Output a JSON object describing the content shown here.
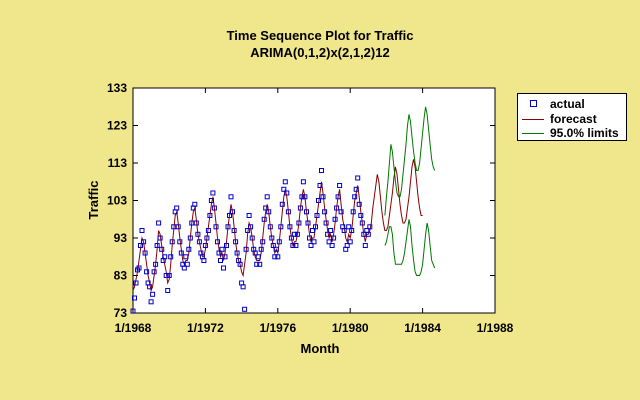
{
  "colors": {
    "background": "#f0e68c",
    "plot_bg": "#ffffff",
    "actual": "#0000cc",
    "forecast": "#8b0000",
    "limits": "#007700"
  },
  "chart_data": {
    "type": "line",
    "title": "Time Sequence Plot for Traffic",
    "subtitle": "ARIMA(0,1,2)x(2,1,2)12",
    "xlabel": "Month",
    "ylabel": "Traffic",
    "xlim": [
      1968.0,
      1988.0
    ],
    "ylim": [
      73,
      133
    ],
    "x_ticks": [
      "1/1968",
      "1/1972",
      "1/1976",
      "1/1980",
      "1/1984",
      "1/1988"
    ],
    "y_ticks": [
      "133",
      "123",
      "113",
      "103",
      "93",
      "83",
      "73"
    ],
    "start_x": 1968.0,
    "step": 0.083333,
    "actual_start": 1968.0,
    "actual": [
      73.5,
      77,
      81,
      84.5,
      85,
      91,
      95,
      92,
      89,
      84,
      81,
      80,
      76,
      78,
      84,
      86,
      91,
      97,
      93,
      90,
      87,
      88,
      83,
      79,
      83,
      88,
      92,
      96,
      100,
      101,
      96,
      92,
      89,
      86,
      85,
      88,
      86,
      90,
      93,
      97,
      101,
      102,
      97,
      94,
      92,
      89,
      88,
      87,
      91,
      93,
      95,
      99,
      103,
      105,
      101,
      96,
      92,
      89,
      87,
      90,
      85,
      88,
      91,
      96,
      99,
      104,
      100,
      95,
      92,
      89,
      87,
      86,
      81,
      80,
      74,
      90,
      95,
      99,
      96,
      93,
      90,
      89,
      86,
      88,
      86,
      90,
      92,
      98,
      101,
      104,
      100,
      96,
      93,
      91,
      88,
      90,
      88,
      92,
      96,
      102,
      106,
      108,
      105,
      100,
      96,
      93,
      91,
      94,
      91,
      94,
      97,
      101,
      104,
      108,
      104,
      100,
      97,
      93,
      91,
      95,
      92,
      96,
      99,
      103,
      107,
      111,
      104,
      100,
      97,
      94,
      92,
      95,
      91,
      93,
      98,
      101,
      104,
      107,
      100,
      96,
      95,
      90,
      91,
      96,
      92,
      95,
      100,
      104,
      106,
      109,
      102,
      99,
      97,
      94,
      91,
      95,
      94,
      96
    ],
    "series": [
      {
        "name": "actual",
        "marker": "square"
      },
      {
        "name": "forecast",
        "start_x": 1968.0,
        "values": [
          79,
          80,
          82,
          84,
          87,
          90,
          93,
          92,
          89,
          86,
          83,
          81,
          79,
          80,
          83,
          86,
          90,
          95,
          94,
          91,
          88,
          86,
          84,
          81,
          82,
          86,
          91,
          95,
          99,
          100,
          97,
          93,
          90,
          87,
          86,
          87,
          87,
          89,
          93,
          97,
          100,
          101,
          98,
          94,
          92,
          90,
          88,
          88,
          90,
          93,
          96,
          99,
          102,
          104,
          101,
          97,
          93,
          90,
          88,
          89,
          87,
          89,
          92,
          96,
          99,
          102,
          100,
          96,
          92,
          89,
          87,
          86,
          84,
          83,
          86,
          89,
          94,
          97,
          96,
          93,
          90,
          88,
          87,
          87,
          87,
          89,
          93,
          97,
          100,
          102,
          100,
          96,
          93,
          91,
          89,
          90,
          89,
          92,
          96,
          100,
          104,
          106,
          104,
          100,
          96,
          93,
          91,
          92,
          92,
          94,
          97,
          101,
          104,
          106,
          104,
          100,
          97,
          94,
          92,
          93,
          93,
          96,
          99,
          102,
          105,
          108,
          105,
          101,
          98,
          95,
          93,
          94,
          92,
          94,
          97,
          101,
          104,
          106,
          102,
          98,
          96,
          93,
          92,
          94,
          93,
          95,
          99,
          103,
          105,
          107,
          104,
          100,
          97,
          94,
          92,
          94,
          94,
          95,
          97,
          101,
          104,
          107,
          110,
          108,
          104,
          100,
          97,
          95,
          95,
          96,
          99,
          102,
          105,
          109,
          112,
          110,
          106,
          102,
          99,
          97,
          97,
          98,
          101,
          104,
          108,
          112,
          114,
          112,
          108,
          104,
          101,
          99,
          99
        ]
      },
      {
        "name": "95.0% limits",
        "start_x": 1981.9167,
        "upper": [
          99,
          104,
          108,
          113,
          118,
          116,
          112,
          108,
          105,
          104,
          104,
          106,
          110,
          114,
          118,
          123,
          126,
          124,
          120,
          116,
          113,
          111,
          111,
          113,
          117,
          121,
          125,
          128,
          126,
          122,
          118,
          114,
          112,
          111
        ],
        "lower": [
          91,
          92,
          94,
          96,
          96,
          94,
          89,
          86,
          86,
          86,
          86,
          86,
          87,
          89,
          92,
          95,
          98,
          96,
          91,
          87,
          84,
          83,
          83,
          83,
          84,
          86,
          90,
          94,
          97,
          95,
          91,
          87,
          86,
          85
        ]
      }
    ],
    "legend": [
      "actual",
      "forecast",
      "95.0% limits"
    ],
    "legend_position": "right"
  }
}
